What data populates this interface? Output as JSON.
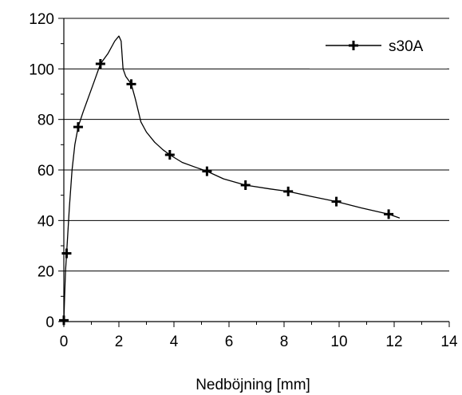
{
  "chart_data": {
    "type": "line",
    "xlabel": "Nedböjning [mm]",
    "ylabel": "",
    "xlim": [
      0,
      14
    ],
    "ylim": [
      0,
      120
    ],
    "x_ticks": [
      0,
      2,
      4,
      6,
      8,
      10,
      12,
      14
    ],
    "y_ticks": [
      0,
      20,
      40,
      60,
      80,
      100,
      120
    ],
    "grid": "horizontal",
    "legend_position": "top-right",
    "series": [
      {
        "name": "s30A",
        "color": "#000000",
        "marker": "plus",
        "line": [
          [
            0,
            0
          ],
          [
            0.03,
            10
          ],
          [
            0.06,
            20
          ],
          [
            0.1,
            27
          ],
          [
            0.2,
            45
          ],
          [
            0.3,
            60
          ],
          [
            0.4,
            70
          ],
          [
            0.52,
            77
          ],
          [
            0.7,
            83
          ],
          [
            0.9,
            89
          ],
          [
            1.1,
            95
          ],
          [
            1.33,
            102
          ],
          [
            1.6,
            106
          ],
          [
            1.85,
            111
          ],
          [
            2.0,
            113
          ],
          [
            2.08,
            111
          ],
          [
            2.15,
            100
          ],
          [
            2.25,
            97
          ],
          [
            2.45,
            94
          ],
          [
            2.6,
            88
          ],
          [
            2.8,
            79
          ],
          [
            3.0,
            75
          ],
          [
            3.3,
            71
          ],
          [
            3.6,
            68
          ],
          [
            3.85,
            66
          ],
          [
            4.3,
            63
          ],
          [
            4.8,
            61
          ],
          [
            5.2,
            59.5
          ],
          [
            5.8,
            56.5
          ],
          [
            6.6,
            54
          ],
          [
            7.5,
            52.5
          ],
          [
            8.15,
            51.5
          ],
          [
            9.0,
            49.5
          ],
          [
            9.9,
            47.5
          ],
          [
            10.8,
            45
          ],
          [
            11.8,
            42.5
          ],
          [
            12.2,
            41
          ]
        ],
        "markers": [
          [
            0,
            0.5
          ],
          [
            0.1,
            27
          ],
          [
            0.52,
            77
          ],
          [
            1.33,
            102
          ],
          [
            2.45,
            94
          ],
          [
            3.85,
            66
          ],
          [
            5.2,
            59.5
          ],
          [
            6.6,
            54
          ],
          [
            8.15,
            51.5
          ],
          [
            9.9,
            47.5
          ],
          [
            11.8,
            42.5
          ]
        ]
      }
    ]
  }
}
